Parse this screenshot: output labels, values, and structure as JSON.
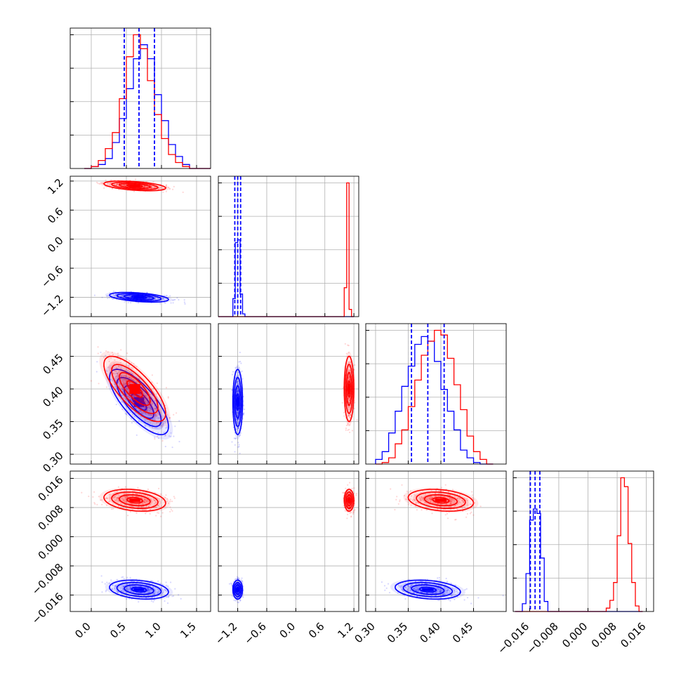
{
  "chart_data": {
    "type": "corner",
    "grid": true,
    "series": [
      {
        "name": "",
        "color": "#0000ff",
        "p1_median": 0.68,
        "p1_sd": 0.21,
        "p2_median": -1.2,
        "p2_sd": 0.05,
        "p3_median": 0.38,
        "p3_sd": 0.025,
        "p4_median": -0.0145,
        "p4_sd": 0.0013,
        "quantile_lines": {
          "p1": [
            0.47,
            0.68,
            0.9
          ],
          "p2": [
            -1.26,
            -1.2,
            -1.14
          ],
          "p3": [
            0.355,
            0.38,
            0.405
          ],
          "p4": [
            -0.0158,
            -0.0145,
            -0.0132
          ]
        }
      },
      {
        "name": "",
        "color": "#ff0000",
        "p1_median": 0.62,
        "p1_sd": 0.22,
        "p2_median": 1.1,
        "p2_sd": 0.05,
        "p3_median": 0.4,
        "p3_sd": 0.025,
        "p4_median": 0.01,
        "p4_sd": 0.0015
      }
    ],
    "parameters": [
      {
        "label": "",
        "range": [
          -0.3,
          1.7
        ],
        "ticks": [
          "0.0",
          "0.5",
          "1.0",
          "1.5"
        ],
        "tick_values": [
          0.0,
          0.5,
          1.0,
          1.5
        ]
      },
      {
        "label": "",
        "range": [
          -1.6,
          1.3
        ],
        "ticks": [
          "−1.2",
          "−0.6",
          "0.0",
          "0.6",
          "1.2"
        ],
        "tick_values": [
          -1.2,
          -0.6,
          0.0,
          0.6,
          1.2
        ]
      },
      {
        "label": "",
        "range": [
          0.285,
          0.5
        ],
        "ticks": [
          "0.30",
          "0.35",
          "0.40",
          "0.45"
        ],
        "tick_values": [
          0.3,
          0.35,
          0.4,
          0.45
        ]
      },
      {
        "label": "",
        "range": [
          -0.0205,
          0.018
        ],
        "ticks": [
          "−0.016",
          "−0.008",
          "0.000",
          "0.008",
          "0.016"
        ],
        "tick_values": [
          -0.016,
          -0.008,
          0.0,
          0.008,
          0.016
        ]
      }
    ],
    "histograms": {
      "p1": {
        "bins": [
          -0.1,
          0.0,
          0.1,
          0.2,
          0.3,
          0.4,
          0.5,
          0.6,
          0.7,
          0.8,
          0.9,
          1.0,
          1.1,
          1.2,
          1.3,
          1.4,
          1.5,
          1.6,
          1.7
        ],
        "blue": [
          0,
          1,
          2,
          5,
          13,
          25,
          40,
          55,
          62,
          55,
          37,
          24,
          12,
          6,
          2,
          0,
          0,
          0
        ],
        "red": [
          0,
          1,
          4,
          10,
          18,
          35,
          56,
          67,
          60,
          44,
          27,
          15,
          7,
          3,
          1,
          0,
          0,
          0
        ]
      },
      "p2": {
        "bins": [
          -1.6,
          -1.3,
          -1.25,
          -1.2,
          -1.15,
          -1.1,
          -1.05,
          1.0,
          1.05,
          1.1,
          1.15,
          1.2
        ],
        "blue": [
          0,
          20,
          82,
          85,
          25,
          3,
          0,
          0,
          0,
          0,
          0
        ],
        "red": [
          0,
          0,
          0,
          0,
          0,
          0,
          0,
          32,
          148,
          8,
          0
        ]
      },
      "p3": {
        "bins": [
          0.3,
          0.31,
          0.32,
          0.33,
          0.34,
          0.35,
          0.36,
          0.37,
          0.38,
          0.39,
          0.4,
          0.41,
          0.42,
          0.43,
          0.44,
          0.45,
          0.46,
          0.47,
          0.48
        ],
        "blue": [
          3,
          8,
          20,
          34,
          50,
          63,
          77,
          82,
          79,
          66,
          48,
          34,
          22,
          9,
          4,
          1,
          0,
          0
        ],
        "red": [
          0,
          1,
          4,
          13,
          22,
          37,
          54,
          70,
          79,
          86,
          83,
          68,
          51,
          35,
          18,
          8,
          3,
          0
        ]
      },
      "p4": {
        "bins": [
          -0.02,
          -0.018,
          -0.017,
          -0.016,
          -0.015,
          -0.014,
          -0.013,
          -0.012,
          -0.011,
          0.004,
          0.005,
          0.006,
          0.007,
          0.008,
          0.009,
          0.01,
          0.011,
          0.012,
          0.013,
          0.014,
          0.015
        ],
        "blue": [
          0,
          7,
          34,
          82,
          92,
          88,
          48,
          9,
          0,
          0,
          0,
          0,
          0,
          0,
          0,
          0,
          0,
          0,
          0,
          0
        ],
        "red": [
          0,
          0,
          0,
          0,
          0,
          0,
          0,
          0,
          0,
          0,
          3,
          10,
          26,
          68,
          120,
          112,
          61,
          26,
          5,
          0
        ]
      }
    },
    "correlations": {
      "p2_p1": {
        "blue": -0.45,
        "red": -0.45
      },
      "p3_p1": {
        "blue": -0.75,
        "red": -0.75
      },
      "p3_p2": {
        "blue": 0.0,
        "red": 0.0
      },
      "p4_p1": {
        "blue": -0.25,
        "red": -0.25
      },
      "p4_p2": {
        "blue": 0.0,
        "red": 0.0
      },
      "p4_p3": {
        "blue": -0.25,
        "red": -0.25
      }
    }
  }
}
